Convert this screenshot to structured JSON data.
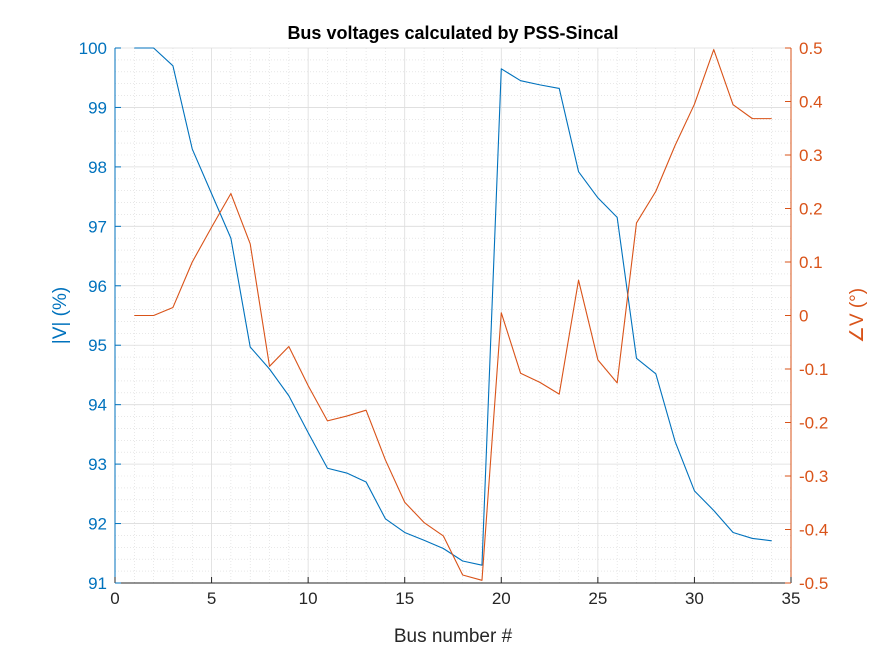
{
  "chart_data": {
    "type": "line",
    "title": "Bus voltages calculated by PSS-Sincal",
    "xlabel": "Bus number #",
    "ylabel_left": "|V| (%)",
    "ylabel_right": "∠V (°)",
    "xlim": [
      0,
      35
    ],
    "ylim_left": [
      91,
      100
    ],
    "ylim_right": [
      -0.5,
      0.5
    ],
    "xticks": [
      "0",
      "5",
      "10",
      "15",
      "20",
      "25",
      "30",
      "35"
    ],
    "yticks_left": [
      "91",
      "92",
      "93",
      "94",
      "95",
      "96",
      "97",
      "98",
      "99",
      "100"
    ],
    "yticks_right": [
      "-0.5",
      "-0.4",
      "-0.3",
      "-0.2",
      "-0.1",
      "0",
      "0.1",
      "0.2",
      "0.3",
      "0.4",
      "0.5"
    ],
    "grid": true,
    "minor_grid": true,
    "colors": {
      "left": "#0072BD",
      "right": "#D95319",
      "axis": "#262626"
    },
    "x": [
      1,
      2,
      3,
      4,
      5,
      6,
      7,
      8,
      9,
      10,
      11,
      12,
      13,
      14,
      15,
      16,
      17,
      18,
      19,
      20,
      21,
      22,
      23,
      24,
      25,
      26,
      27,
      28,
      29,
      30,
      31,
      32,
      33,
      34
    ],
    "series": [
      {
        "axis": "left",
        "values": [
          100.0,
          100.0,
          99.7,
          98.3,
          97.55,
          96.8,
          94.97,
          94.6,
          94.15,
          93.53,
          92.93,
          92.85,
          92.7,
          92.08,
          91.85,
          91.72,
          91.58,
          91.37,
          91.3,
          99.65,
          99.45,
          99.38,
          99.32,
          97.92,
          97.48,
          97.15,
          94.78,
          94.52,
          93.38,
          92.55,
          92.22,
          91.85,
          91.75,
          91.71
        ]
      },
      {
        "axis": "right",
        "values": [
          0.0,
          0.0,
          0.015,
          0.1,
          0.165,
          0.228,
          0.134,
          -0.095,
          -0.058,
          -0.131,
          -0.197,
          -0.188,
          -0.177,
          -0.27,
          -0.349,
          -0.387,
          -0.412,
          -0.485,
          -0.495,
          0.005,
          -0.108,
          -0.125,
          -0.147,
          0.066,
          -0.083,
          -0.126,
          0.173,
          0.232,
          0.318,
          0.395,
          0.497,
          0.394,
          0.368,
          0.368
        ]
      }
    ]
  }
}
